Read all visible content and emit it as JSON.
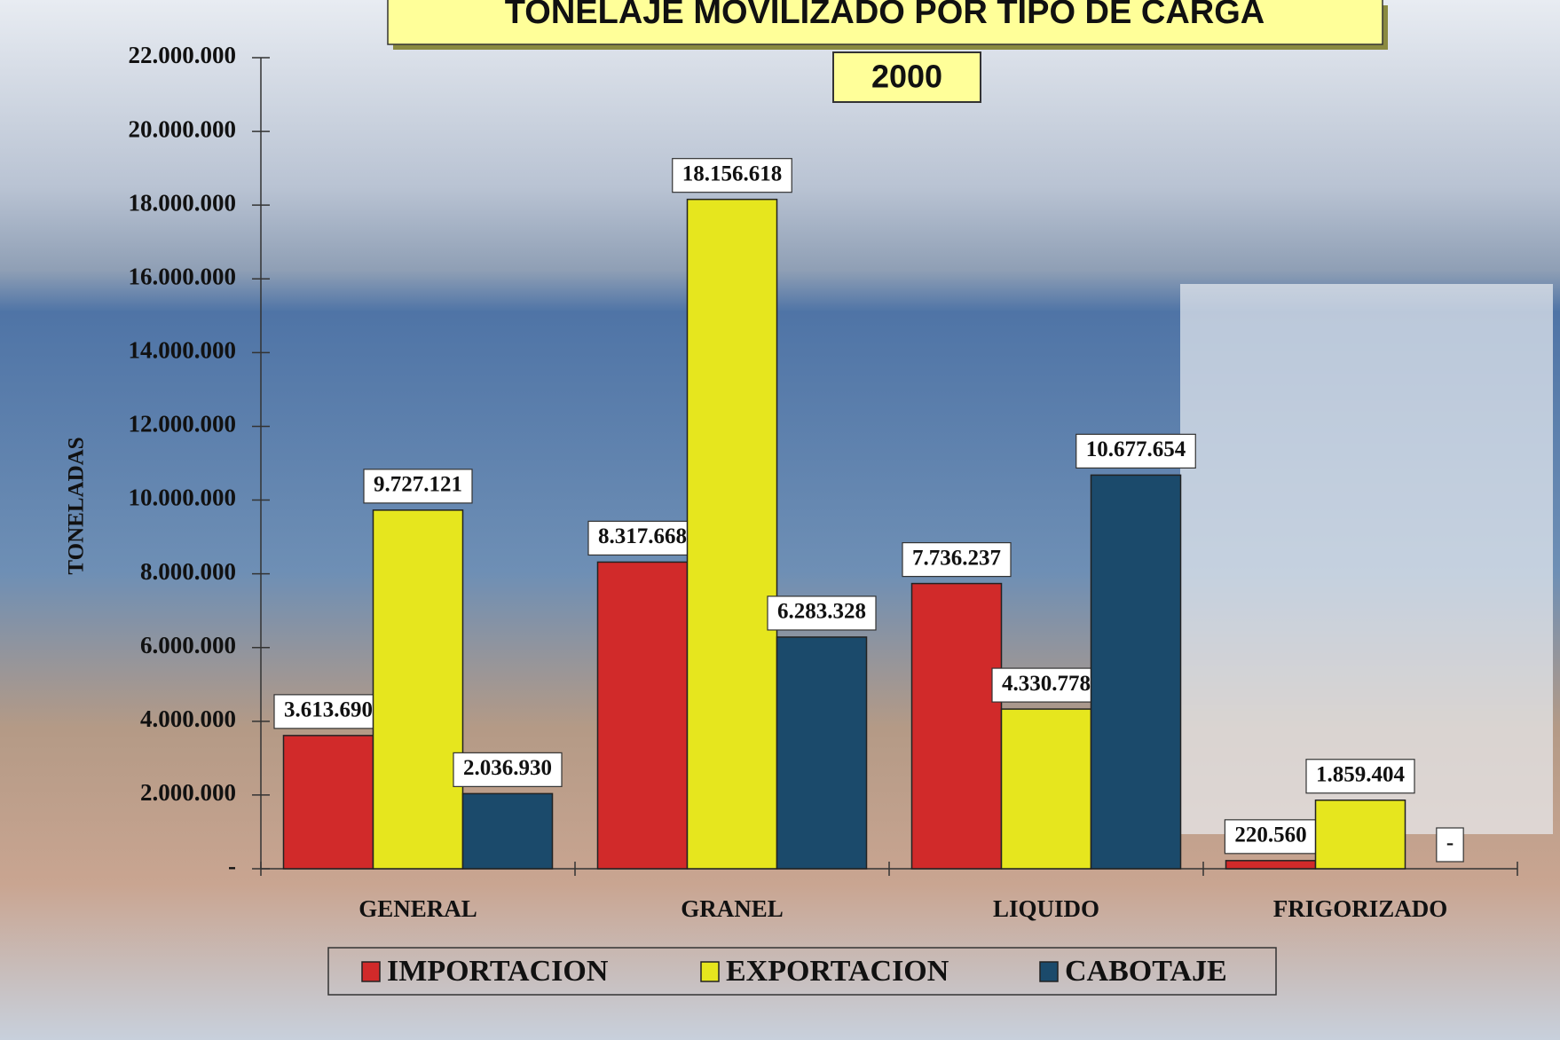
{
  "chart_data": {
    "type": "bar",
    "title": "TONELAJE MOVILIZADO POR TIPO DE CARGA",
    "subtitle": "2000",
    "y_label": "TONELADAS",
    "categories": [
      "GENERAL",
      "GRANEL",
      "LIQUIDO",
      "FRIGORIZADO"
    ],
    "series": [
      {
        "name": "IMPORTACION",
        "color": "#d12a2a",
        "values": [
          3613690,
          8317668,
          7736237,
          220560
        ],
        "value_labels": [
          "3.613.690",
          "8.317.668",
          "7.736.237",
          "220.560"
        ]
      },
      {
        "name": "EXPORTACION",
        "color": "#e6e61e",
        "values": [
          9727121,
          18156618,
          4330778,
          1859404
        ],
        "value_labels": [
          "9.727.121",
          "18.156.618",
          "4.330.778",
          "1.859.404"
        ]
      },
      {
        "name": "CABOTAJE",
        "color": "#1b4a6b",
        "values": [
          2036930,
          6283328,
          10677654,
          0
        ],
        "value_labels": [
          "2.036.930",
          "6.283.328",
          "10.677.654",
          "-"
        ]
      }
    ],
    "ylim": [
      0,
      22000000
    ],
    "yticks": [
      {
        "value": 0,
        "label": "-"
      },
      {
        "value": 2000000,
        "label": "2.000.000"
      },
      {
        "value": 4000000,
        "label": "4.000.000"
      },
      {
        "value": 6000000,
        "label": "6.000.000"
      },
      {
        "value": 8000000,
        "label": "8.000.000"
      },
      {
        "value": 10000000,
        "label": "10.000.000"
      },
      {
        "value": 12000000,
        "label": "12.000.000"
      },
      {
        "value": 14000000,
        "label": "14.000.000"
      },
      {
        "value": 16000000,
        "label": "16.000.000"
      },
      {
        "value": 18000000,
        "label": "18.000.000"
      },
      {
        "value": 20000000,
        "label": "20.000.000"
      },
      {
        "value": 22000000,
        "label": "22.000.000"
      }
    ],
    "legend": "bottom"
  }
}
